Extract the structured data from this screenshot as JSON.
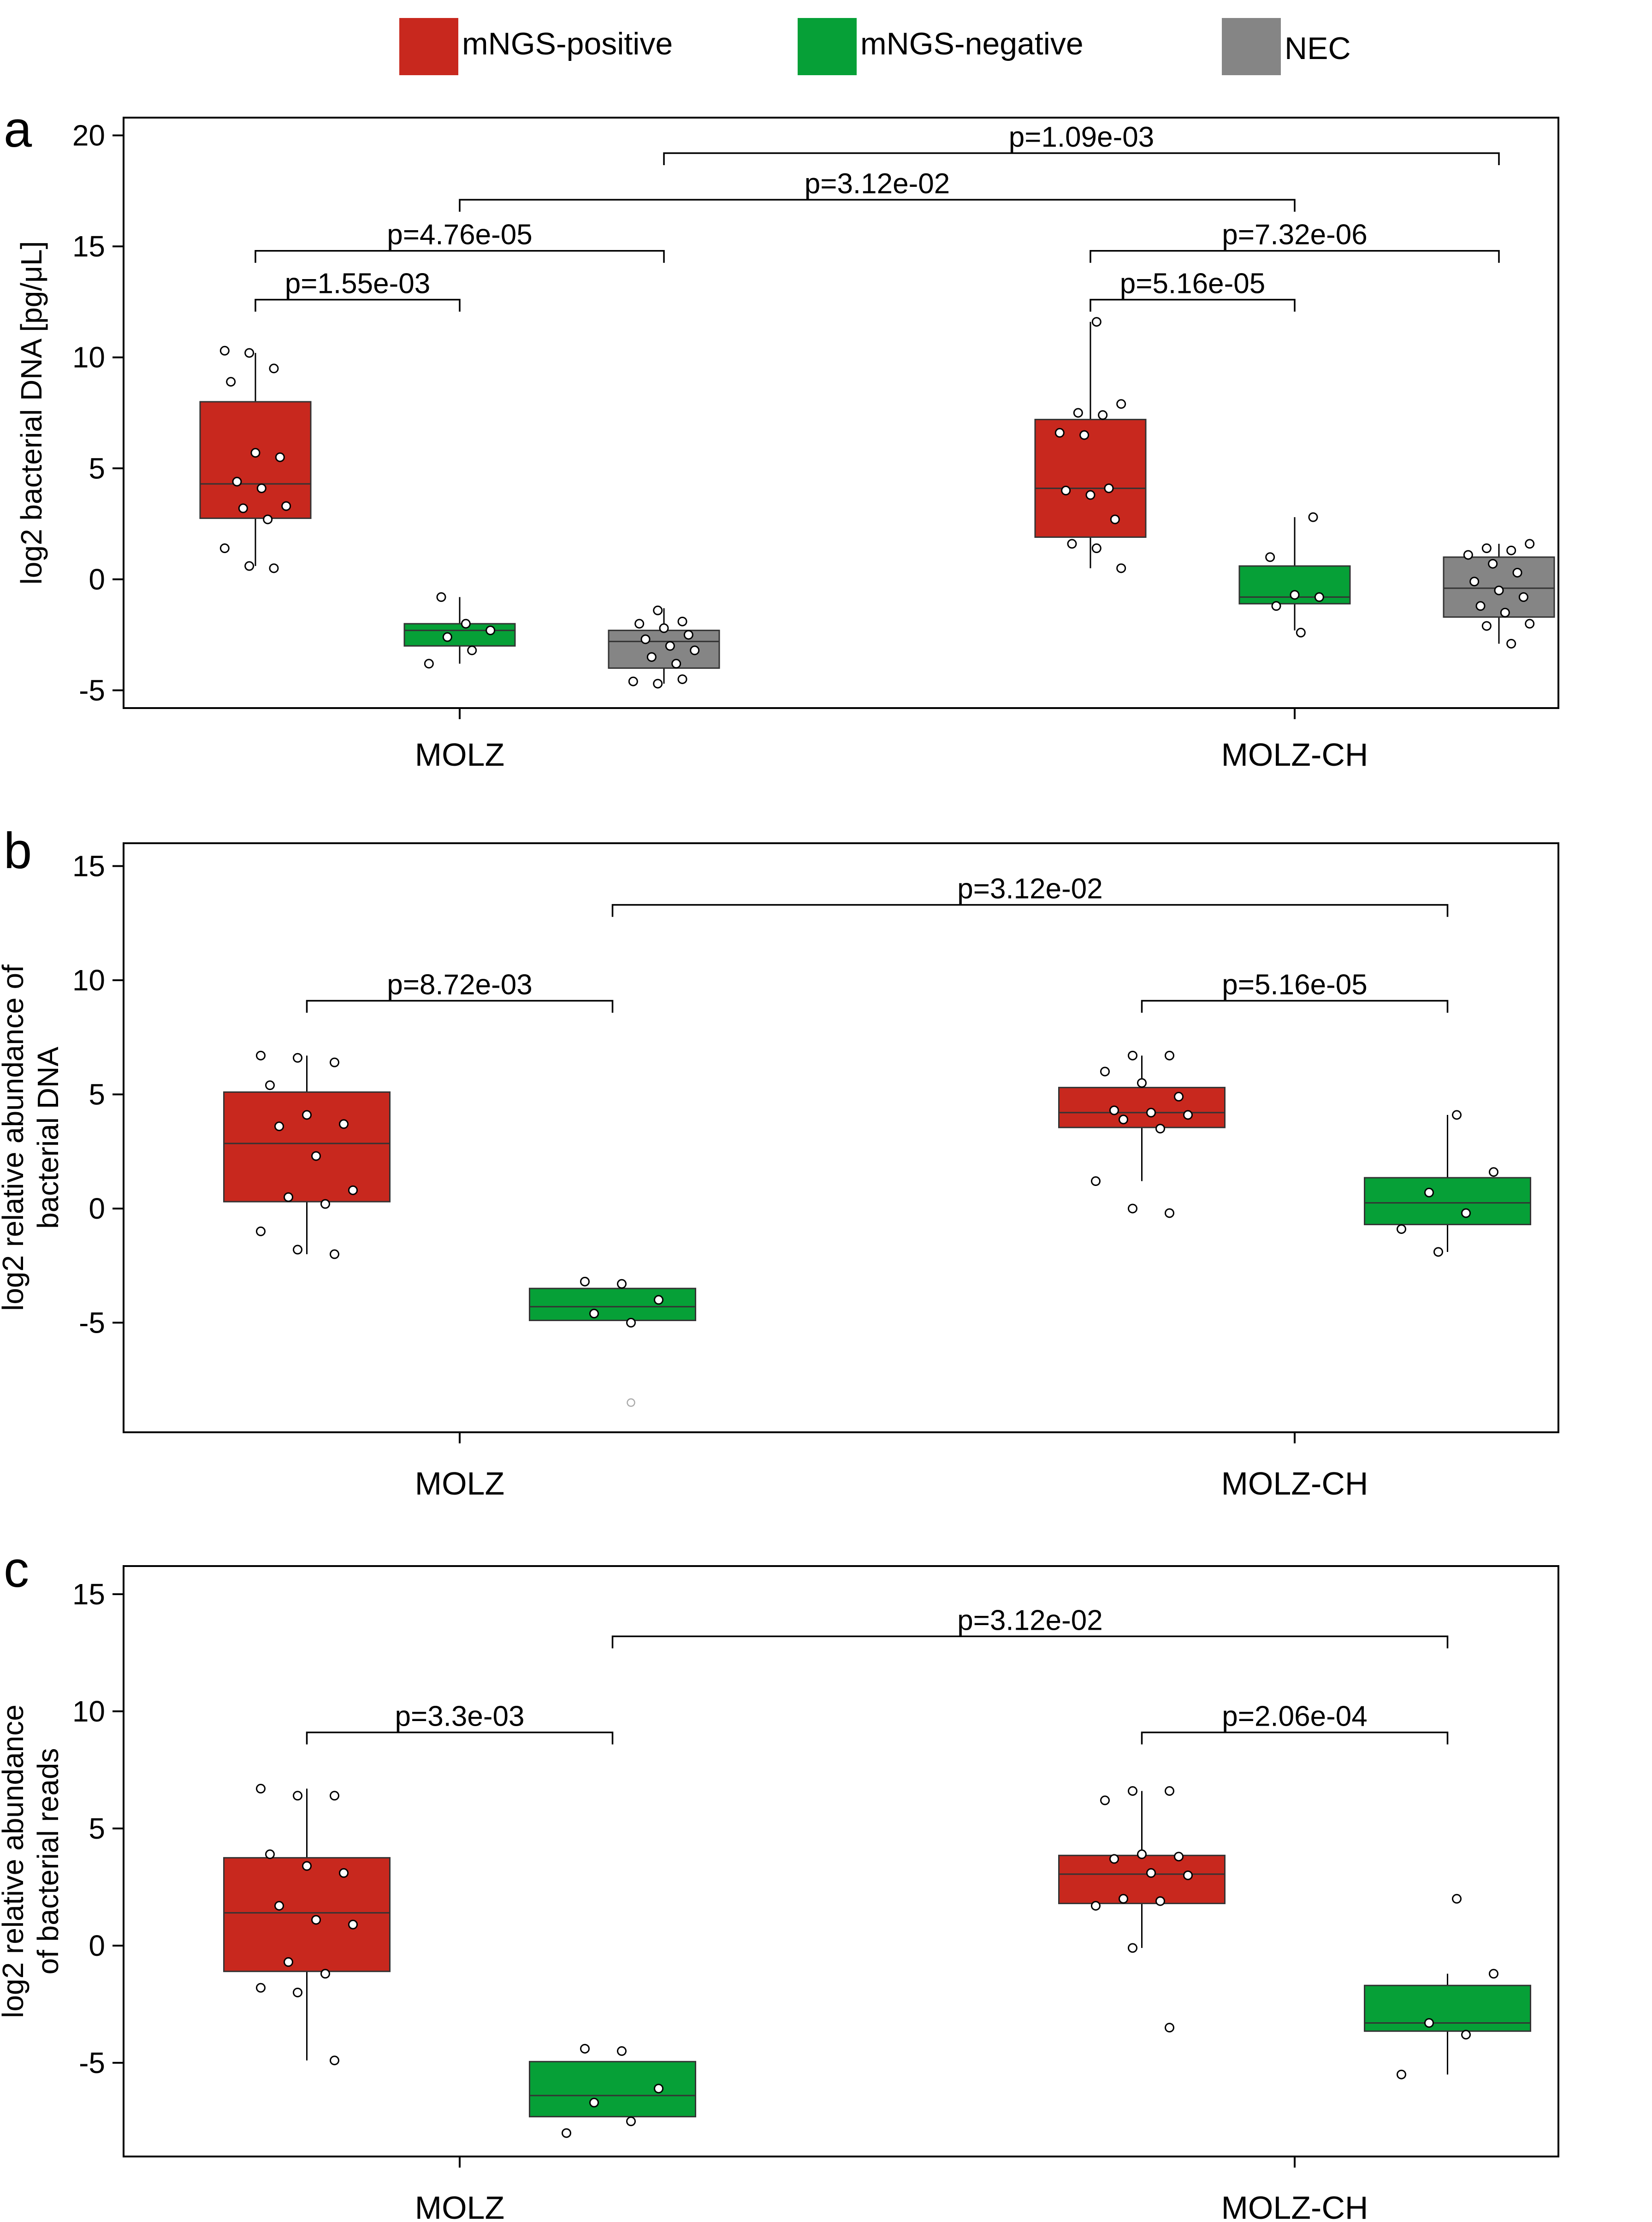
{
  "legend": [
    {
      "label": "mNGS-positive",
      "color": "#c8281e"
    },
    {
      "label": "mNGS-negative",
      "color": "#06a037"
    },
    {
      "label": "NEC",
      "color": "#858585"
    }
  ],
  "chart_data": [
    {
      "panel": "a",
      "type": "box",
      "ylabel": "log2 bacterial DNA [pg/μL]",
      "ylim": [
        -5.8,
        20.8
      ],
      "yticks": [
        -5,
        0,
        5,
        10,
        15,
        20
      ],
      "yticklabels": [
        "-5",
        "0",
        "5",
        "10",
        "15",
        "20"
      ],
      "categories": [
        "MOLZ",
        "MOLZ-CH"
      ],
      "boxes": [
        {
          "cat": 0,
          "series": "mNGS-positive",
          "color": "#c8281e",
          "q1": 2.75,
          "median": 4.3,
          "q3": 8.0,
          "whislo": 0.6,
          "whishi": 10.2,
          "points": [
            10.3,
            10.2,
            9.5,
            8.9,
            5.7,
            5.5,
            4.4,
            4.1,
            3.3,
            3.2,
            2.7,
            1.4,
            0.6,
            0.5
          ]
        },
        {
          "cat": 0,
          "series": "mNGS-negative",
          "color": "#06a037",
          "q1": -3.0,
          "median": -2.3,
          "q3": -2.0,
          "whislo": -3.8,
          "whishi": -0.8,
          "points": [
            -0.8,
            -2.0,
            -2.3,
            -2.6,
            -3.2,
            -3.8
          ]
        },
        {
          "cat": 0,
          "series": "NEC",
          "color": "#858585",
          "q1": -4.0,
          "median": -2.8,
          "q3": -2.3,
          "whislo": -4.7,
          "whishi": -1.3,
          "points": [
            -1.4,
            -1.9,
            -2.0,
            -2.2,
            -2.5,
            -2.7,
            -3.0,
            -3.2,
            -3.5,
            -3.8,
            -4.6,
            -4.7,
            -4.5
          ]
        },
        {
          "cat": 1,
          "series": "mNGS-positive",
          "color": "#c8281e",
          "q1": 1.9,
          "median": 4.1,
          "q3": 7.2,
          "whislo": 0.5,
          "whishi": 11.6,
          "points": [
            11.6,
            7.9,
            7.5,
            7.4,
            6.6,
            6.5,
            4.1,
            4.0,
            3.8,
            2.7,
            1.6,
            1.4,
            0.5
          ]
        },
        {
          "cat": 1,
          "series": "mNGS-negative",
          "color": "#06a037",
          "q1": -1.1,
          "median": -0.8,
          "q3": 0.6,
          "whislo": -2.3,
          "whishi": 2.8,
          "points": [
            2.8,
            1.0,
            -0.7,
            -0.8,
            -1.2,
            -2.4
          ]
        },
        {
          "cat": 1,
          "series": "NEC",
          "color": "#858585",
          "q1": -1.7,
          "median": -0.4,
          "q3": 1.0,
          "whislo": -2.9,
          "whishi": 1.6,
          "points": [
            1.6,
            1.4,
            1.3,
            1.1,
            0.7,
            0.3,
            -0.1,
            -0.5,
            -0.8,
            -1.2,
            -1.5,
            -2.0,
            -2.1,
            -2.9
          ]
        }
      ],
      "brackets": [
        {
          "label": "p=1.55e-03",
          "from": [
            0,
            0
          ],
          "to": [
            0,
            1
          ],
          "y": 12.6
        },
        {
          "label": "p=4.76e-05",
          "from": [
            0,
            0
          ],
          "to": [
            0,
            2
          ],
          "y": 14.8
        },
        {
          "label": "p=3.12e-02",
          "from": [
            0,
            1
          ],
          "to": [
            1,
            1
          ],
          "y": 17.1
        },
        {
          "label": "p=1.09e-03",
          "from": [
            0,
            2
          ],
          "to": [
            1,
            2
          ],
          "y": 19.2
        },
        {
          "label": "p=5.16e-05",
          "from": [
            1,
            0
          ],
          "to": [
            1,
            1
          ],
          "y": 12.6
        },
        {
          "label": "p=7.32e-06",
          "from": [
            1,
            0
          ],
          "to": [
            1,
            2
          ],
          "y": 14.8
        }
      ]
    },
    {
      "panel": "b",
      "type": "box",
      "ylabel": "log2 relative abundance of bacterial DNA",
      "ylabel_lines": [
        "log2 relative abundance of",
        "bacterial DNA"
      ],
      "ylim": [
        -9.8,
        16.0
      ],
      "yticks": [
        -5,
        0,
        5,
        10,
        15
      ],
      "yticklabels": [
        "-5",
        "0",
        "5",
        "10",
        "15"
      ],
      "categories": [
        "MOLZ",
        "MOLZ-CH"
      ],
      "boxes": [
        {
          "cat": 0,
          "series": "mNGS-positive",
          "color": "#c8281e",
          "q1": 0.3,
          "median": 2.85,
          "q3": 5.1,
          "whislo": -2.0,
          "whishi": 6.7,
          "points": [
            6.7,
            6.6,
            6.4,
            5.4,
            4.1,
            3.7,
            3.6,
            2.3,
            0.8,
            0.5,
            0.2,
            -1.0,
            -1.8,
            -2.0
          ]
        },
        {
          "cat": 0,
          "series": "mNGS-negative",
          "color": "#06a037",
          "q1": -4.9,
          "median": -4.3,
          "q3": -3.5,
          "whislo": -4.9,
          "whishi": -3.5,
          "points": [
            -3.2,
            -3.3,
            -4.0,
            -4.6,
            -5.0
          ]
        },
        {
          "cat": 1,
          "series": "mNGS-positive",
          "color": "#c8281e",
          "q1": 3.55,
          "median": 4.2,
          "q3": 5.3,
          "whislo": 1.2,
          "whishi": 6.7,
          "points": [
            6.7,
            6.7,
            6.0,
            5.5,
            4.9,
            4.3,
            4.2,
            4.1,
            3.9,
            3.5,
            1.2,
            0.0,
            -0.2
          ]
        },
        {
          "cat": 1,
          "series": "mNGS-negative",
          "color": "#06a037",
          "q1": -0.7,
          "median": 0.25,
          "q3": 1.35,
          "whislo": -1.9,
          "whishi": 4.1,
          "points": [
            4.1,
            1.6,
            0.7,
            -0.2,
            -0.9,
            -1.9
          ]
        }
      ],
      "outliers": [
        {
          "cat": 0,
          "series": "mNGS-negative",
          "value": -8.5
        }
      ],
      "brackets": [
        {
          "label": "p=8.72e-03",
          "from": [
            0,
            0
          ],
          "to": [
            0,
            1
          ],
          "y": 9.1
        },
        {
          "label": "p=3.12e-02",
          "from": [
            0,
            1
          ],
          "to": [
            1,
            1
          ],
          "y": 13.3
        },
        {
          "label": "p=5.16e-05",
          "from": [
            1,
            0
          ],
          "to": [
            1,
            1
          ],
          "y": 9.1
        }
      ]
    },
    {
      "panel": "c",
      "type": "box",
      "ylabel": "log2 relative abundance of bacterial reads",
      "ylabel_lines": [
        "log2 relative abundance",
        "of bacterial reads"
      ],
      "ylim": [
        -9.0,
        16.2
      ],
      "yticks": [
        -5,
        0,
        5,
        10,
        15
      ],
      "yticklabels": [
        "-5",
        "0",
        "5",
        "10",
        "15"
      ],
      "categories": [
        "MOLZ",
        "MOLZ-CH"
      ],
      "boxes": [
        {
          "cat": 0,
          "series": "mNGS-positive",
          "color": "#c8281e",
          "q1": -1.1,
          "median": 1.4,
          "q3": 3.75,
          "whislo": -4.9,
          "whishi": 6.7,
          "points": [
            6.7,
            6.4,
            6.4,
            3.9,
            3.4,
            3.1,
            1.7,
            1.1,
            0.9,
            -0.7,
            -1.2,
            -1.8,
            -2.0,
            -4.9
          ]
        },
        {
          "cat": 0,
          "series": "mNGS-negative",
          "color": "#06a037",
          "q1": -7.3,
          "median": -6.4,
          "q3": -4.95,
          "whislo": -7.3,
          "whishi": -4.95,
          "points": [
            -4.4,
            -4.5,
            -6.1,
            -6.7,
            -7.5,
            -8.0
          ]
        },
        {
          "cat": 1,
          "series": "mNGS-positive",
          "color": "#c8281e",
          "q1": 1.8,
          "median": 3.05,
          "q3": 3.85,
          "whislo": -0.1,
          "whishi": 6.6,
          "points": [
            6.6,
            6.6,
            6.2,
            3.9,
            3.8,
            3.7,
            3.1,
            3.0,
            2.0,
            1.9,
            1.7,
            -0.1,
            -3.5
          ]
        },
        {
          "cat": 1,
          "series": "mNGS-negative",
          "color": "#06a037",
          "q1": -3.65,
          "median": -3.3,
          "q3": -1.7,
          "whislo": -5.5,
          "whishi": -1.2,
          "points": [
            2.0,
            -1.2,
            -3.3,
            -3.8,
            -5.5
          ]
        }
      ],
      "brackets": [
        {
          "label": "p=3.3e-03",
          "from": [
            0,
            0
          ],
          "to": [
            0,
            1
          ],
          "y": 9.1
        },
        {
          "label": "p=3.12e-02",
          "from": [
            0,
            1
          ],
          "to": [
            1,
            1
          ],
          "y": 13.2
        },
        {
          "label": "p=2.06e-04",
          "from": [
            1,
            0
          ],
          "to": [
            1,
            1
          ],
          "y": 9.1
        }
      ]
    }
  ]
}
